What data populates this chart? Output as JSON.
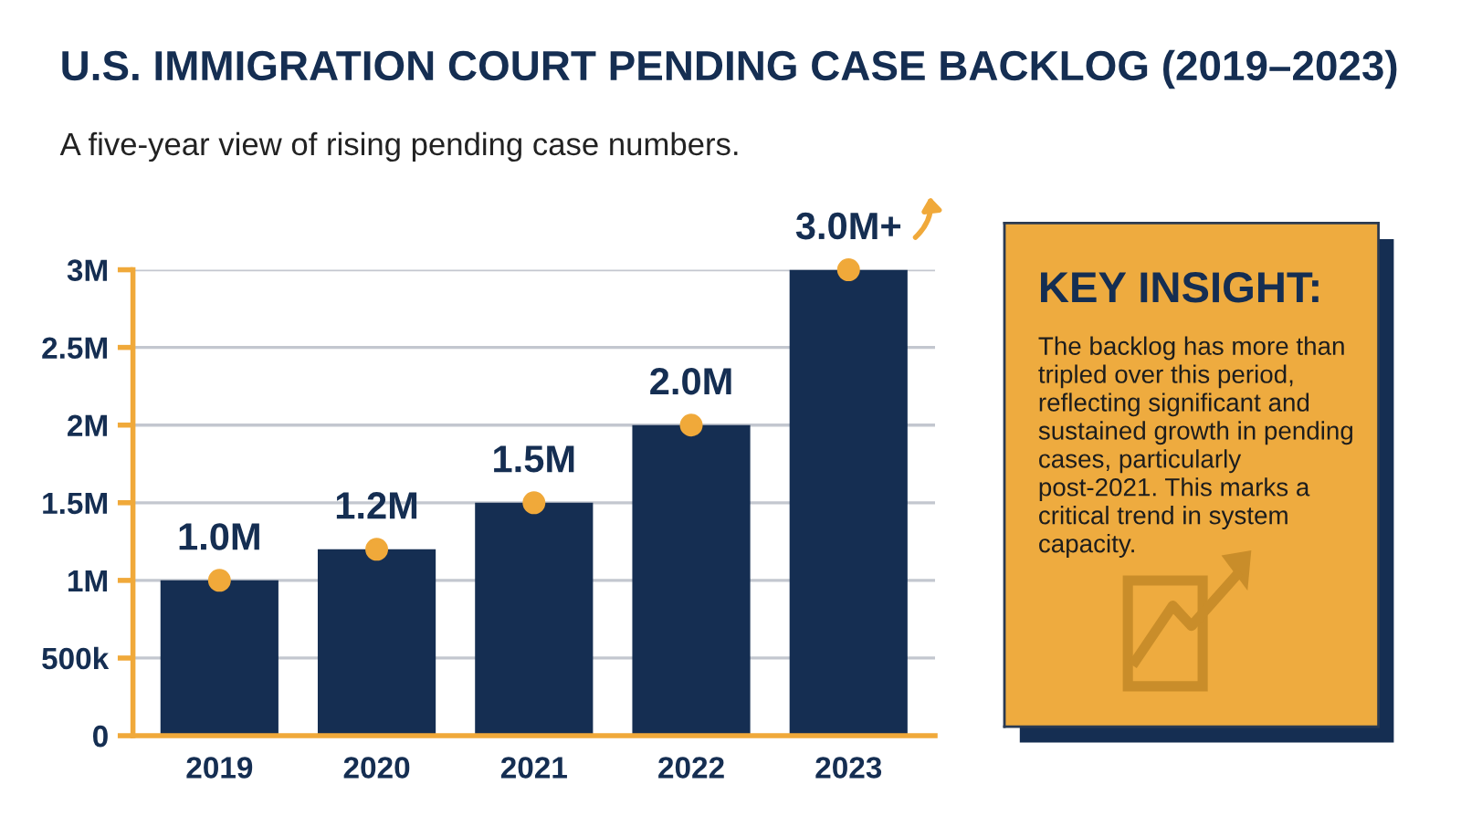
{
  "chart_data": [
    {
      "type": "bar",
      "title": "U.S. IMMIGRATION COURT PENDING CASE BACKLOG (2019–2023)",
      "subtitle": "A five-year view of rising pending case numbers.",
      "categories": [
        "2019",
        "2020",
        "2021",
        "2022",
        "2023"
      ],
      "series": [
        {
          "type": "bar",
          "color": "#152e52",
          "values": [
            1000000,
            1200000,
            1500000,
            2000000,
            3000000
          ],
          "value_labels": [
            "1.0M",
            "1.2M",
            "1.5M",
            "2.0M",
            "3.0M+"
          ]
        },
        {
          "type": "scatter",
          "color": "#f0a93a",
          "values": [
            1000000,
            1200000,
            1500000,
            2000000,
            3000000
          ],
          "marker": "circle"
        }
      ],
      "ylim": [
        0,
        3000000
      ],
      "yticks": [
        0,
        {
          "value": 500000,
          "label": "500k"
        },
        {
          "value": 1000000,
          "label": "1M"
        },
        {
          "value": 1500000,
          "label": "1.5M"
        },
        {
          "value": 2000000,
          "label": "2M"
        },
        {
          "value": 2500000,
          "label": "2.5M"
        },
        {
          "value": 3000000,
          "label": "3M"
        }
      ],
      "grid": "y"
    },
    {
      "type": "other",
      "title": "KEY INSIGHT:",
      "annotations": [
        "The backlog has more than tripled over this period, reflecting significant and sustained growth in pending cases, particularly post-2021. This marks a critical trend in system capacity."
      ]
    }
  ]
}
